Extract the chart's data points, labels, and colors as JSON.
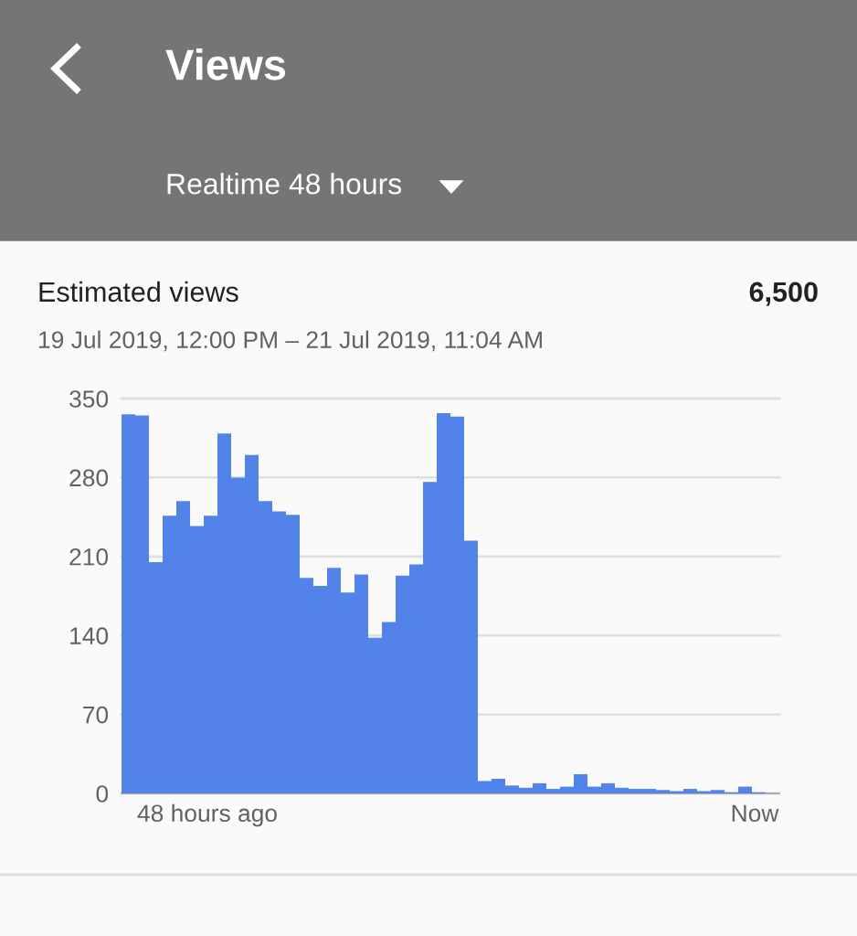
{
  "chart_data": {
    "type": "bar",
    "title": "Views",
    "subtitle": "Realtime 48 hours",
    "annotations": [
      "Estimated views",
      "6,500",
      "19 Jul 2019, 12:00 PM – 21 Jul 2019, 11:04 AM",
      "48 hours ago",
      "Now"
    ],
    "categories": [
      null,
      null,
      null,
      null,
      null,
      null,
      null,
      null,
      null,
      null,
      null,
      null,
      null,
      null,
      null,
      null,
      null,
      null,
      null,
      null,
      null,
      null,
      null,
      null,
      null,
      null,
      null,
      null,
      null,
      null,
      null,
      null,
      null,
      null,
      null,
      null,
      null,
      null,
      null,
      null,
      null,
      null,
      null,
      null,
      null,
      null,
      null,
      null
    ],
    "values": [
      336,
      335,
      205,
      246,
      259,
      237,
      246,
      319,
      280,
      300,
      259,
      250,
      247,
      191,
      184,
      200,
      178,
      194,
      138,
      152,
      193,
      203,
      276,
      337,
      334,
      224,
      11,
      13,
      7,
      5,
      9,
      4,
      6,
      17,
      6,
      9,
      5,
      4,
      4,
      3,
      2,
      4,
      2,
      3,
      1,
      6,
      1,
      0
    ],
    "color": "#5283e8",
    "ylim": [
      0,
      350
    ],
    "yticks": [
      0,
      70,
      140,
      210,
      280,
      350
    ],
    "grid": "y",
    "legend": false
  }
}
